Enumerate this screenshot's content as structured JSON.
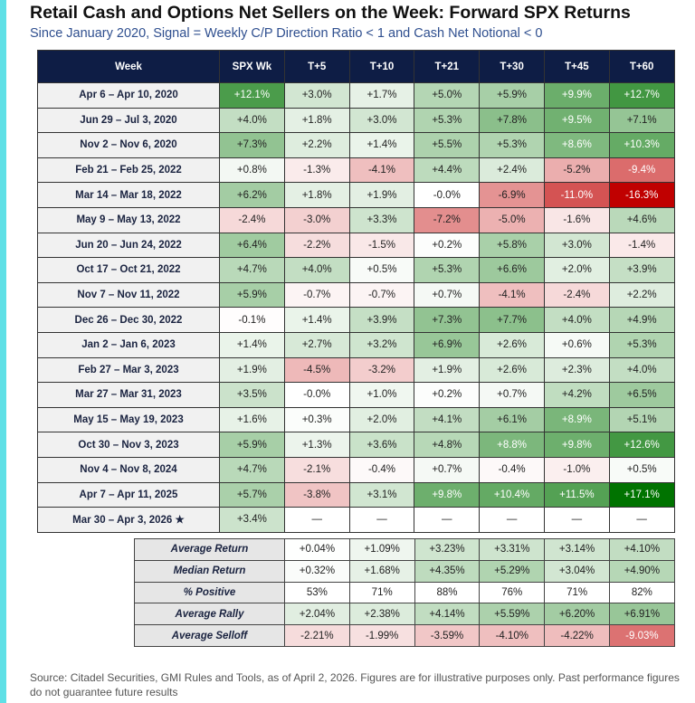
{
  "title": "Retail Cash and Options Net Sellers on the Week: Forward SPX Returns",
  "subtitle": "Since January 2020, Signal = Weekly C/P Direction Ratio < 1 and Cash Net Notional < 0",
  "footer": "Source: Citadel Securities, GMI Rules and Tools, as of April 2, 2026. Figures are for illustrative purposes only. Past performance figures do not guarantee future results",
  "colors": {
    "accent_bar": "#5fe0e6",
    "header_bg": "#0e1d45",
    "positive_max": "#007300",
    "negative_max": "#c00000"
  },
  "chart_data": {
    "type": "table",
    "columns": [
      "Week",
      "SPX Wk",
      "T+5",
      "T+10",
      "T+21",
      "T+30",
      "T+45",
      "T+60"
    ],
    "rows": [
      {
        "week": "Apr 6 – Apr 10, 2020",
        "values": [
          "+12.1%",
          "+3.0%",
          "+1.7%",
          "+5.0%",
          "+5.9%",
          "+9.9%",
          "+12.7%"
        ]
      },
      {
        "week": "Jun 29 – Jul 3, 2020",
        "values": [
          "+4.0%",
          "+1.8%",
          "+3.0%",
          "+5.3%",
          "+7.8%",
          "+9.5%",
          "+7.1%"
        ]
      },
      {
        "week": "Nov 2 – Nov 6, 2020",
        "values": [
          "+7.3%",
          "+2.2%",
          "+1.4%",
          "+5.5%",
          "+5.3%",
          "+8.6%",
          "+10.3%"
        ]
      },
      {
        "week": "Feb 21 – Feb 25, 2022",
        "values": [
          "+0.8%",
          "-1.3%",
          "-4.1%",
          "+4.4%",
          "+2.4%",
          "-5.2%",
          "-9.4%"
        ]
      },
      {
        "week": "Mar 14 – Mar 18, 2022",
        "values": [
          "+6.2%",
          "+1.8%",
          "+1.9%",
          "-0.0%",
          "-6.9%",
          "-11.0%",
          "-16.3%"
        ]
      },
      {
        "week": "May 9 – May 13, 2022",
        "values": [
          "-2.4%",
          "-3.0%",
          "+3.3%",
          "-7.2%",
          "-5.0%",
          "-1.6%",
          "+4.6%"
        ]
      },
      {
        "week": "Jun 20 – Jun 24, 2022",
        "values": [
          "+6.4%",
          "-2.2%",
          "-1.5%",
          "+0.2%",
          "+5.8%",
          "+3.0%",
          "-1.4%"
        ]
      },
      {
        "week": "Oct 17 – Oct 21, 2022",
        "values": [
          "+4.7%",
          "+4.0%",
          "+0.5%",
          "+5.3%",
          "+6.6%",
          "+2.0%",
          "+3.9%"
        ]
      },
      {
        "week": "Nov 7 – Nov 11, 2022",
        "values": [
          "+5.9%",
          "-0.7%",
          "-0.7%",
          "+0.7%",
          "-4.1%",
          "-2.4%",
          "+2.2%"
        ]
      },
      {
        "week": "Dec 26 – Dec 30, 2022",
        "values": [
          "-0.1%",
          "+1.4%",
          "+3.9%",
          "+7.3%",
          "+7.7%",
          "+4.0%",
          "+4.9%"
        ]
      },
      {
        "week": "Jan 2 – Jan 6, 2023",
        "values": [
          "+1.4%",
          "+2.7%",
          "+3.2%",
          "+6.9%",
          "+2.6%",
          "+0.6%",
          "+5.3%"
        ]
      },
      {
        "week": "Feb 27 – Mar 3, 2023",
        "values": [
          "+1.9%",
          "-4.5%",
          "-3.2%",
          "+1.9%",
          "+2.6%",
          "+2.3%",
          "+4.0%"
        ]
      },
      {
        "week": "Mar 27 – Mar 31, 2023",
        "values": [
          "+3.5%",
          "-0.0%",
          "+1.0%",
          "+0.2%",
          "+0.7%",
          "+4.2%",
          "+6.5%"
        ]
      },
      {
        "week": "May 15 – May 19, 2023",
        "values": [
          "+1.6%",
          "+0.3%",
          "+2.0%",
          "+4.1%",
          "+6.1%",
          "+8.9%",
          "+5.1%"
        ]
      },
      {
        "week": "Oct 30 – Nov 3, 2023",
        "values": [
          "+5.9%",
          "+1.3%",
          "+3.6%",
          "+4.8%",
          "+8.8%",
          "+9.8%",
          "+12.6%"
        ]
      },
      {
        "week": "Nov 4 – Nov 8, 2024",
        "values": [
          "+4.7%",
          "-2.1%",
          "-0.4%",
          "+0.7%",
          "-0.4%",
          "-1.0%",
          "+0.5%"
        ]
      },
      {
        "week": "Apr 7 – Apr 11, 2025",
        "values": [
          "+5.7%",
          "-3.8%",
          "+3.1%",
          "+9.8%",
          "+10.4%",
          "+11.5%",
          "+17.1%"
        ]
      },
      {
        "week": "Mar 30 – Apr 3, 2026 ★",
        "values": [
          "+3.4%",
          "—",
          "—",
          "—",
          "—",
          "—",
          "—"
        ]
      }
    ],
    "summary": [
      {
        "label": "Average Return",
        "values": [
          "+0.04%",
          "+1.09%",
          "+3.23%",
          "+3.31%",
          "+3.14%",
          "+4.10%"
        ]
      },
      {
        "label": "Median Return",
        "values": [
          "+0.32%",
          "+1.68%",
          "+4.35%",
          "+5.29%",
          "+3.04%",
          "+4.90%"
        ]
      },
      {
        "label": "% Positive",
        "values": [
          "53%",
          "71%",
          "88%",
          "76%",
          "71%",
          "82%"
        ]
      },
      {
        "label": "Average Rally",
        "values": [
          "+2.04%",
          "+2.38%",
          "+4.14%",
          "+5.59%",
          "+6.20%",
          "+6.91%"
        ]
      },
      {
        "label": "Average Selloff",
        "values": [
          "-2.21%",
          "-1.99%",
          "-3.59%",
          "-4.10%",
          "-4.22%",
          "-9.03%"
        ]
      }
    ]
  }
}
